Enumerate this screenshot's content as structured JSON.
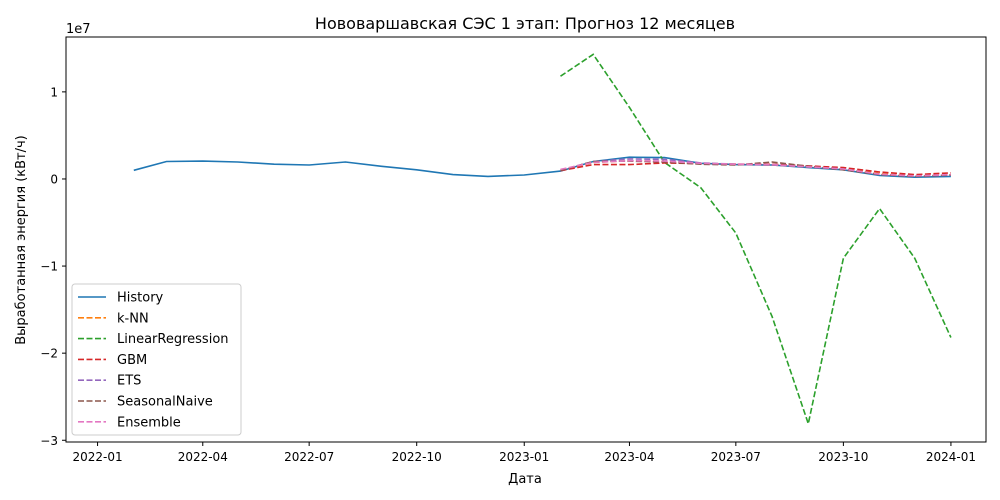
{
  "chart_data": {
    "type": "line",
    "title": "Нововаршавская СЭС 1 этап: Прогноз 12 месяцев",
    "xlabel": "Дата",
    "ylabel": "Выработанная энергия (кВт/ч)",
    "y_offset_label": "1e7",
    "x_ticks": [
      "2022-01",
      "2022-04",
      "2022-07",
      "2022-10",
      "2023-01",
      "2023-04",
      "2023-07",
      "2023-10",
      "2024-01"
    ],
    "y_ticks": [
      "−3",
      "−2",
      "−1",
      "0",
      "1"
    ],
    "y_tick_values": [
      -30000000,
      -20000000,
      -10000000,
      0,
      10000000
    ],
    "xlim": [
      "2021-12-05",
      "2024-01-31"
    ],
    "ylim": [
      -30200000,
      16300000
    ],
    "grid": false,
    "legend_position": "lower-left",
    "series": [
      {
        "name": "History",
        "color": "#1f77b4",
        "dash": "solid",
        "x": [
          "2022-02-01",
          "2022-03-01",
          "2022-04-01",
          "2022-05-01",
          "2022-06-01",
          "2022-07-01",
          "2022-08-01",
          "2022-09-01",
          "2022-10-01",
          "2022-11-01",
          "2022-12-01",
          "2023-01-01",
          "2023-02-01",
          "2023-03-01",
          "2023-04-01",
          "2023-05-01",
          "2023-06-01",
          "2023-07-01",
          "2023-08-01",
          "2023-09-01",
          "2023-10-01",
          "2023-11-01",
          "2023-12-01",
          "2024-01-01"
        ],
        "values": [
          1000000,
          2000000,
          2050000,
          1950000,
          1700000,
          1600000,
          1950000,
          1450000,
          1050000,
          500000,
          300000,
          450000,
          900000,
          2000000,
          2500000,
          2450000,
          1800000,
          1650000,
          1600000,
          1300000,
          1050000,
          400000,
          200000,
          300000
        ]
      },
      {
        "name": "k-NN",
        "color": "#ff7f0e",
        "dash": "dashed",
        "x": [
          "2023-02-01",
          "2023-03-01",
          "2023-04-01",
          "2023-05-01",
          "2023-06-01",
          "2023-07-01",
          "2023-08-01",
          "2023-09-01",
          "2023-10-01",
          "2023-11-01",
          "2023-12-01",
          "2024-01-01"
        ],
        "values": [
          1000000,
          1900000,
          2100000,
          2000000,
          1800000,
          1700000,
          1600000,
          1400000,
          1150000,
          600000,
          350000,
          450000
        ]
      },
      {
        "name": "LinearRegression",
        "color": "#2ca02c",
        "dash": "dashed",
        "x": [
          "2023-02-01",
          "2023-03-01",
          "2023-04-01",
          "2023-05-01",
          "2023-06-01",
          "2023-07-01",
          "2023-08-01",
          "2023-09-01",
          "2023-10-01",
          "2023-11-01",
          "2023-12-01",
          "2024-01-01"
        ],
        "values": [
          11800000,
          14300000,
          8200000,
          1900000,
          -1000000,
          -6200000,
          -15800000,
          -28100000,
          -9100000,
          -3400000,
          -9100000,
          -18200000
        ]
      },
      {
        "name": "GBM",
        "color": "#d62728",
        "dash": "dashed",
        "x": [
          "2023-02-01",
          "2023-03-01",
          "2023-04-01",
          "2023-05-01",
          "2023-06-01",
          "2023-07-01",
          "2023-08-01",
          "2023-09-01",
          "2023-10-01",
          "2023-11-01",
          "2023-12-01",
          "2024-01-01"
        ],
        "values": [
          950000,
          1650000,
          1650000,
          1850000,
          1750000,
          1700000,
          1700000,
          1500000,
          1300000,
          800000,
          500000,
          700000
        ]
      },
      {
        "name": "ETS",
        "color": "#9467bd",
        "dash": "dashed",
        "x": [
          "2023-02-01",
          "2023-03-01",
          "2023-04-01",
          "2023-05-01",
          "2023-06-01",
          "2023-07-01",
          "2023-08-01",
          "2023-09-01",
          "2023-10-01",
          "2023-11-01",
          "2023-12-01",
          "2024-01-01"
        ],
        "values": [
          1000000,
          2000000,
          2300000,
          2250000,
          1850000,
          1700000,
          1600000,
          1400000,
          1150000,
          500000,
          300000,
          450000
        ]
      },
      {
        "name": "SeasonalNaive",
        "color": "#8c564b",
        "dash": "dashed",
        "x": [
          "2023-02-01",
          "2023-03-01",
          "2023-04-01",
          "2023-05-01",
          "2023-06-01",
          "2023-07-01",
          "2023-08-01",
          "2023-09-01",
          "2023-10-01",
          "2023-11-01",
          "2023-12-01",
          "2024-01-01"
        ],
        "values": [
          1000000,
          2000000,
          2050000,
          1950000,
          1700000,
          1600000,
          1950000,
          1450000,
          1050000,
          500000,
          300000,
          450000
        ]
      },
      {
        "name": "Ensemble",
        "color": "#e377c2",
        "dash": "dashed",
        "x": [
          "2023-02-01",
          "2023-03-01",
          "2023-04-01",
          "2023-05-01",
          "2023-06-01",
          "2023-07-01",
          "2023-08-01",
          "2023-09-01",
          "2023-10-01",
          "2023-11-01",
          "2023-12-01",
          "2024-01-01"
        ],
        "values": [
          1100000,
          1900000,
          2100000,
          2050000,
          1800000,
          1700000,
          1650000,
          1400000,
          1150000,
          550000,
          350000,
          500000
        ]
      }
    ]
  }
}
